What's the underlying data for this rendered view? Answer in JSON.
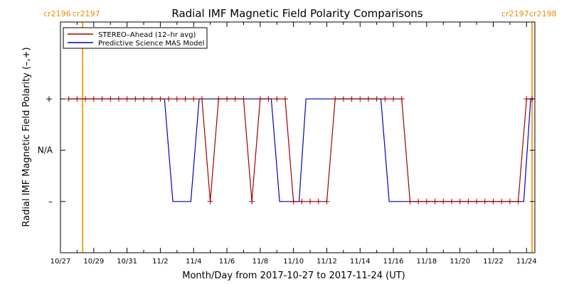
{
  "chart_data": {
    "type": "line",
    "title": "Radial IMF Magnetic Field Polarity Comparisons",
    "xlabel": "Month/Day from 2017-10-27 to 2017-11-24 (UT)",
    "ylabel": "Radial IMF Magnetic Field Polarity (–,+)",
    "xlim": [
      "2017-10-27",
      "2017-11-24T12:00"
    ],
    "x_ticks": [
      "10/27",
      "10/29",
      "10/31",
      "11/2",
      "11/4",
      "11/6",
      "11/8",
      "11/10",
      "11/12",
      "11/14",
      "11/16",
      "11/18",
      "11/20",
      "11/22",
      "11/24"
    ],
    "y_levels": [
      {
        "label": "+",
        "value": 1
      },
      {
        "label": "N/A",
        "value": 0
      },
      {
        "label": "–",
        "value": -1
      }
    ],
    "ylim": [
      -2,
      2.5
    ],
    "legend_position": "top-left",
    "carrington_markers": [
      {
        "date": "2017-10-28T08:00",
        "left_label": "cr2196",
        "right_label": "cr2197"
      },
      {
        "date": "2017-11-24T08:00",
        "left_label": "cr2197",
        "right_label": "cr2198"
      }
    ],
    "series": [
      {
        "name": "STEREO–Ahead (12–hr avg)",
        "color": "#a00000",
        "marker": "plus",
        "points": [
          [
            "2017-10-27T12:00",
            1
          ],
          [
            "2017-10-28T00:00",
            1
          ],
          [
            "2017-10-28T12:00",
            1
          ],
          [
            "2017-10-29T00:00",
            1
          ],
          [
            "2017-10-29T12:00",
            1
          ],
          [
            "2017-10-30T00:00",
            1
          ],
          [
            "2017-10-30T12:00",
            1
          ],
          [
            "2017-10-31T00:00",
            1
          ],
          [
            "2017-10-31T12:00",
            1
          ],
          [
            "2017-11-01T00:00",
            1
          ],
          [
            "2017-11-01T12:00",
            1
          ],
          [
            "2017-11-02T00:00",
            1
          ],
          [
            "2017-11-02T12:00",
            1
          ],
          [
            "2017-11-03T00:00",
            1
          ],
          [
            "2017-11-03T12:00",
            1
          ],
          [
            "2017-11-04T00:00",
            1
          ],
          [
            "2017-11-04T12:00",
            1
          ],
          [
            "2017-11-05T00:00",
            -1
          ],
          [
            "2017-11-05T12:00",
            1
          ],
          [
            "2017-11-06T00:00",
            1
          ],
          [
            "2017-11-06T12:00",
            1
          ],
          [
            "2017-11-07T00:00",
            1
          ],
          [
            "2017-11-07T12:00",
            -1
          ],
          [
            "2017-11-08T00:00",
            1
          ],
          [
            "2017-11-08T12:00",
            1
          ],
          [
            "2017-11-09T00:00",
            1
          ],
          [
            "2017-11-09T12:00",
            1
          ],
          [
            "2017-11-10T00:00",
            -1
          ],
          [
            "2017-11-10T12:00",
            -1
          ],
          [
            "2017-11-11T00:00",
            -1
          ],
          [
            "2017-11-11T12:00",
            -1
          ],
          [
            "2017-11-12T00:00",
            -1
          ],
          [
            "2017-11-12T12:00",
            1
          ],
          [
            "2017-11-13T00:00",
            1
          ],
          [
            "2017-11-13T12:00",
            1
          ],
          [
            "2017-11-14T00:00",
            1
          ],
          [
            "2017-11-14T12:00",
            1
          ],
          [
            "2017-11-15T00:00",
            1
          ],
          [
            "2017-11-15T12:00",
            1
          ],
          [
            "2017-11-16T00:00",
            1
          ],
          [
            "2017-11-16T12:00",
            1
          ],
          [
            "2017-11-17T00:00",
            -1
          ],
          [
            "2017-11-17T12:00",
            -1
          ],
          [
            "2017-11-18T00:00",
            -1
          ],
          [
            "2017-11-18T12:00",
            -1
          ],
          [
            "2017-11-19T00:00",
            -1
          ],
          [
            "2017-11-19T12:00",
            -1
          ],
          [
            "2017-11-20T00:00",
            -1
          ],
          [
            "2017-11-20T12:00",
            -1
          ],
          [
            "2017-11-21T00:00",
            -1
          ],
          [
            "2017-11-21T12:00",
            -1
          ],
          [
            "2017-11-22T00:00",
            -1
          ],
          [
            "2017-11-22T12:00",
            -1
          ],
          [
            "2017-11-23T00:00",
            -1
          ],
          [
            "2017-11-23T12:00",
            -1
          ],
          [
            "2017-11-24T00:00",
            1
          ],
          [
            "2017-11-24T08:00",
            1
          ]
        ]
      },
      {
        "name": "Predictive Science MAS Model",
        "color": "#0000c0",
        "marker": "none",
        "points": [
          [
            "2017-10-27T12:00",
            1
          ],
          [
            "2017-11-02T06:00",
            1
          ],
          [
            "2017-11-02T18:00",
            -1
          ],
          [
            "2017-11-03T20:00",
            -1
          ],
          [
            "2017-11-04T08:00",
            1
          ],
          [
            "2017-11-08T16:00",
            1
          ],
          [
            "2017-11-09T04:00",
            -1
          ],
          [
            "2017-11-10T08:00",
            -1
          ],
          [
            "2017-11-10T18:00",
            1
          ],
          [
            "2017-11-15T06:00",
            1
          ],
          [
            "2017-11-15T18:00",
            -1
          ],
          [
            "2017-11-23T20:00",
            -1
          ],
          [
            "2017-11-24T06:00",
            1
          ],
          [
            "2017-11-24T08:00",
            1
          ]
        ]
      }
    ]
  }
}
